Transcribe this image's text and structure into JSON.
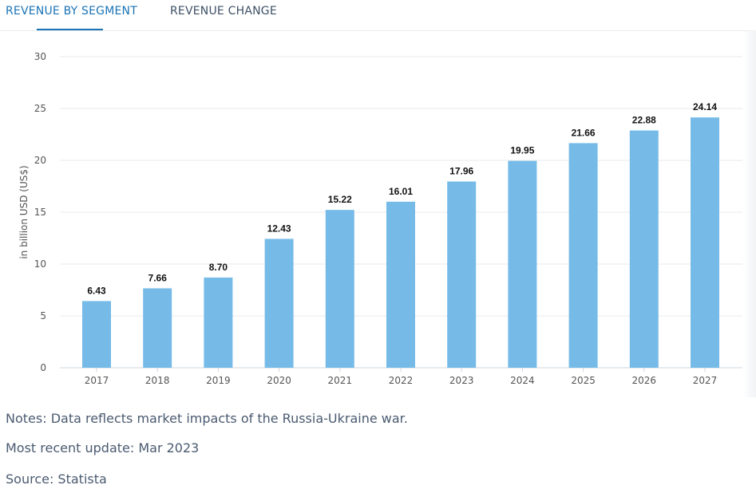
{
  "tabs": [
    {
      "label": "REVENUE BY SEGMENT",
      "active": true
    },
    {
      "label": "REVENUE CHANGE",
      "active": false
    }
  ],
  "colors": {
    "accent": "#1a73b5",
    "bar": "#76bbe8",
    "grid": "#e6e9ee"
  },
  "chart_data": {
    "type": "bar",
    "title": "",
    "xlabel": "",
    "ylabel": "in billion USD (US$)",
    "categories": [
      "2017",
      "2018",
      "2019",
      "2020",
      "2021",
      "2022",
      "2023",
      "2024",
      "2025",
      "2026",
      "2027"
    ],
    "values": [
      6.43,
      7.66,
      8.7,
      12.43,
      15.22,
      16.01,
      17.96,
      19.95,
      21.66,
      22.88,
      24.14
    ],
    "data_labels": [
      "6.43",
      "7.66",
      "8.70",
      "12.43",
      "15.22",
      "16.01",
      "17.96",
      "19.95",
      "21.66",
      "22.88",
      "24.14"
    ],
    "ylim": [
      0,
      30
    ],
    "yticks": [
      0,
      5,
      10,
      15,
      20,
      25,
      30
    ],
    "grid": true,
    "legend": false
  },
  "footer": {
    "notes": "Notes: Data reflects market impacts of the Russia-Ukraine war.",
    "update": "Most recent update: Mar 2023",
    "source": "Source: Statista"
  }
}
